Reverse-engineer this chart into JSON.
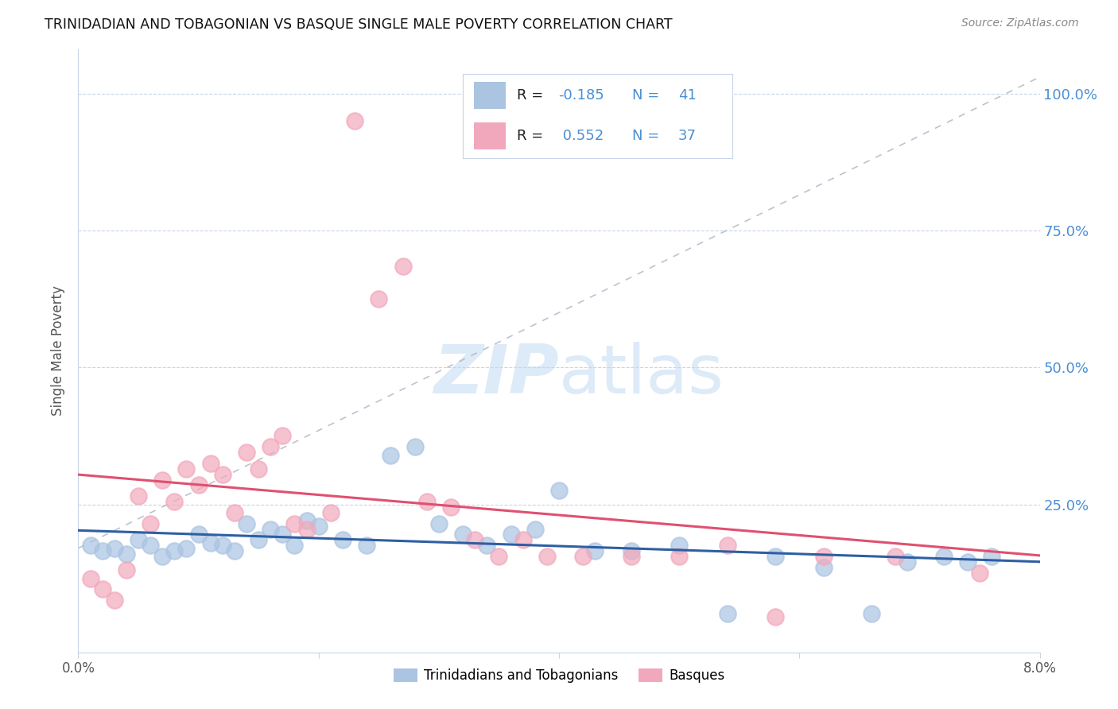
{
  "title": "TRINIDADIAN AND TOBAGONIAN VS BASQUE SINGLE MALE POVERTY CORRELATION CHART",
  "source": "Source: ZipAtlas.com",
  "ylabel": "Single Male Poverty",
  "xlim": [
    0.0,
    0.08
  ],
  "ylim": [
    -0.02,
    1.08
  ],
  "color_blue": "#aac4e2",
  "color_pink": "#f2a8bc",
  "color_line_blue": "#2e5fa3",
  "color_line_pink": "#e05070",
  "color_diag": "#b0b8c8",
  "color_grid": "#c8d4e8",
  "color_axis_right": "#4a8fd4",
  "color_text_dark": "#222222",
  "watermark_color": "#ddeaf8",
  "background_color": "#ffffff",
  "tri_x": [
    0.001,
    0.002,
    0.003,
    0.004,
    0.005,
    0.006,
    0.007,
    0.008,
    0.009,
    0.01,
    0.011,
    0.012,
    0.013,
    0.014,
    0.015,
    0.016,
    0.017,
    0.018,
    0.019,
    0.02,
    0.022,
    0.024,
    0.026,
    0.028,
    0.03,
    0.032,
    0.034,
    0.036,
    0.038,
    0.04,
    0.043,
    0.046,
    0.05,
    0.054,
    0.058,
    0.062,
    0.066,
    0.069,
    0.072,
    0.074,
    0.076
  ],
  "tri_y": [
    0.175,
    0.165,
    0.17,
    0.16,
    0.185,
    0.175,
    0.155,
    0.165,
    0.17,
    0.195,
    0.18,
    0.175,
    0.165,
    0.215,
    0.185,
    0.205,
    0.195,
    0.175,
    0.22,
    0.21,
    0.185,
    0.175,
    0.34,
    0.355,
    0.215,
    0.195,
    0.175,
    0.195,
    0.205,
    0.275,
    0.165,
    0.165,
    0.175,
    0.05,
    0.155,
    0.135,
    0.05,
    0.145,
    0.155,
    0.145,
    0.155
  ],
  "bas_x": [
    0.001,
    0.002,
    0.003,
    0.004,
    0.005,
    0.006,
    0.007,
    0.008,
    0.009,
    0.01,
    0.011,
    0.012,
    0.013,
    0.014,
    0.015,
    0.016,
    0.017,
    0.018,
    0.019,
    0.021,
    0.023,
    0.025,
    0.027,
    0.029,
    0.031,
    0.033,
    0.035,
    0.037,
    0.039,
    0.042,
    0.046,
    0.05,
    0.054,
    0.058,
    0.062,
    0.068,
    0.075
  ],
  "bas_y": [
    0.115,
    0.095,
    0.075,
    0.13,
    0.265,
    0.215,
    0.295,
    0.255,
    0.315,
    0.285,
    0.325,
    0.305,
    0.235,
    0.345,
    0.315,
    0.355,
    0.375,
    0.215,
    0.205,
    0.235,
    0.95,
    0.625,
    0.685,
    0.255,
    0.245,
    0.185,
    0.155,
    0.185,
    0.155,
    0.155,
    0.155,
    0.155,
    0.175,
    0.045,
    0.155,
    0.155,
    0.125
  ],
  "ytick_vals": [
    0.25,
    0.5,
    0.75,
    1.0
  ],
  "ytick_labels": [
    "25.0%",
    "50.0%",
    "75.0%",
    "100.0%"
  ],
  "xtick_vals": [
    0.0,
    0.02,
    0.04,
    0.06,
    0.08
  ],
  "xtick_labels": [
    "0.0%",
    "",
    "",
    "",
    "8.0%"
  ]
}
